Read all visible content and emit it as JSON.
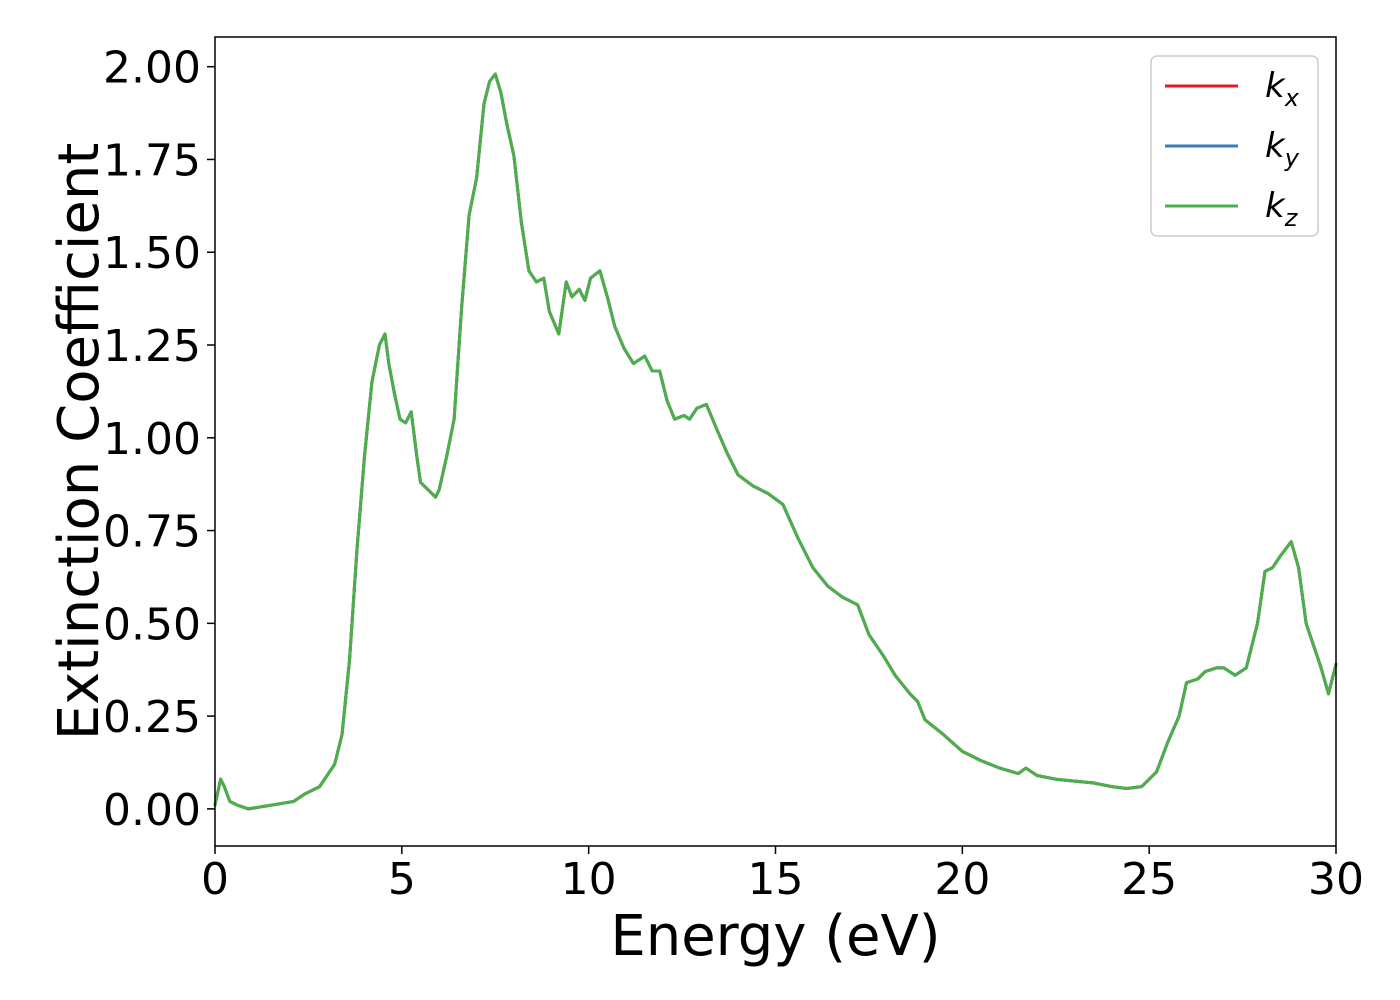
{
  "chart_data": {
    "type": "line",
    "xlabel": "Energy (eV)",
    "ylabel": "Extinction Coefficient",
    "xlim": [
      0,
      30
    ],
    "ylim": [
      -0.1,
      2.08
    ],
    "x_ticks": [
      "0",
      "5",
      "10",
      "15",
      "20",
      "25",
      "30"
    ],
    "y_ticks": [
      "0.00",
      "0.25",
      "0.50",
      "0.75",
      "1.00",
      "1.25",
      "1.50",
      "1.75",
      "2.00"
    ],
    "grid": false,
    "legend_position": "top-right",
    "series": [
      {
        "name": "k",
        "subscript": "x",
        "color": "#e41a1c"
      },
      {
        "name": "k",
        "subscript": "y",
        "color": "#377eb8"
      },
      {
        "name": "k",
        "subscript": "z",
        "color": "#4daf4a"
      }
    ],
    "shared_curve": {
      "x": [
        0,
        0.15,
        0.25,
        0.4,
        0.6,
        0.9,
        1.2,
        1.5,
        1.8,
        2.1,
        2.4,
        2.6,
        2.8,
        3.0,
        3.2,
        3.4,
        3.6,
        3.8,
        4.0,
        4.2,
        4.4,
        4.55,
        4.65,
        4.8,
        4.95,
        5.1,
        5.25,
        5.4,
        5.5,
        5.7,
        5.9,
        6.0,
        6.2,
        6.4,
        6.6,
        6.8,
        7.0,
        7.2,
        7.35,
        7.5,
        7.65,
        7.8,
        8.0,
        8.2,
        8.4,
        8.6,
        8.8,
        8.95,
        9.2,
        9.4,
        9.55,
        9.75,
        9.9,
        10.05,
        10.3,
        10.5,
        10.7,
        10.95,
        11.2,
        11.5,
        11.7,
        11.9,
        12.1,
        12.3,
        12.55,
        12.7,
        12.9,
        13.15,
        13.4,
        13.7,
        14.0,
        14.4,
        14.8,
        15.2,
        15.6,
        16.0,
        16.4,
        16.8,
        17.2,
        17.5,
        17.9,
        18.2,
        18.6,
        18.8,
        19.0,
        19.5,
        20.0,
        20.5,
        21.0,
        21.5,
        21.7,
        22.0,
        22.5,
        23.0,
        23.5,
        24.0,
        24.4,
        24.8,
        25.2,
        25.5,
        25.8,
        26.0,
        26.3,
        26.5,
        26.8,
        27.0,
        27.3,
        27.6,
        27.9,
        28.1,
        28.3,
        28.5,
        28.8,
        29.0,
        29.2,
        29.4,
        29.6,
        29.8,
        30.0
      ],
      "y": [
        0.01,
        0.08,
        0.06,
        0.02,
        0.01,
        0.0,
        0.005,
        0.01,
        0.015,
        0.02,
        0.04,
        0.05,
        0.06,
        0.09,
        0.12,
        0.2,
        0.4,
        0.7,
        0.95,
        1.15,
        1.25,
        1.28,
        1.2,
        1.12,
        1.05,
        1.04,
        1.07,
        0.95,
        0.88,
        0.86,
        0.84,
        0.86,
        0.95,
        1.05,
        1.35,
        1.6,
        1.7,
        1.9,
        1.96,
        1.98,
        1.93,
        1.85,
        1.76,
        1.58,
        1.45,
        1.42,
        1.43,
        1.34,
        1.28,
        1.42,
        1.38,
        1.4,
        1.37,
        1.43,
        1.45,
        1.38,
        1.3,
        1.24,
        1.2,
        1.22,
        1.18,
        1.18,
        1.1,
        1.05,
        1.06,
        1.05,
        1.08,
        1.09,
        1.03,
        0.96,
        0.9,
        0.87,
        0.85,
        0.82,
        0.73,
        0.65,
        0.6,
        0.57,
        0.55,
        0.47,
        0.41,
        0.36,
        0.31,
        0.29,
        0.24,
        0.2,
        0.155,
        0.13,
        0.11,
        0.095,
        0.11,
        0.09,
        0.08,
        0.075,
        0.07,
        0.06,
        0.055,
        0.06,
        0.1,
        0.18,
        0.25,
        0.34,
        0.35,
        0.37,
        0.38,
        0.38,
        0.36,
        0.38,
        0.5,
        0.64,
        0.65,
        0.68,
        0.72,
        0.65,
        0.5,
        0.44,
        0.38,
        0.31,
        0.39
      ]
    }
  }
}
